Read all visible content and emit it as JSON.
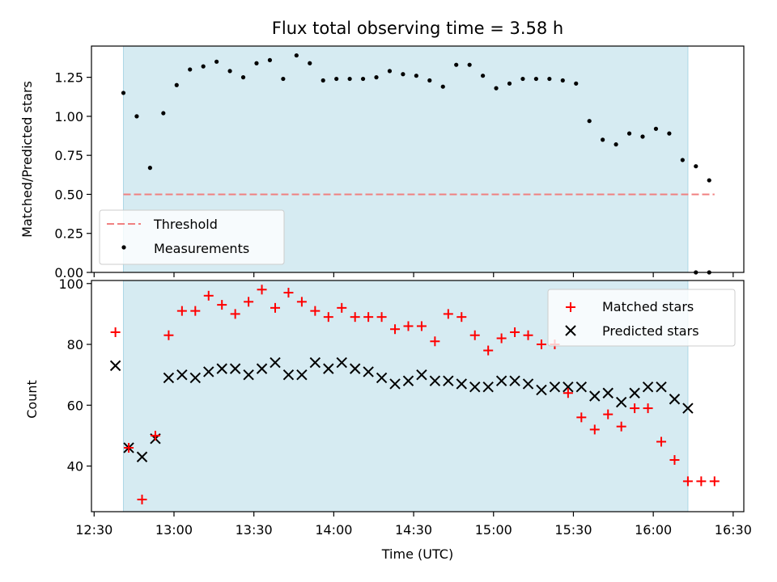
{
  "chart_data": [
    {
      "type": "scatter",
      "panel": "top",
      "title": "Flux total observing time = 3.58 h",
      "xlabel": "",
      "ylabel": "Matched/Predicted stars",
      "ylim": [
        0,
        1.45
      ],
      "yticks": [
        0,
        0.25,
        0.5,
        0.75,
        1.0,
        1.25
      ],
      "ytick_labels": [
        "0.00",
        "0.25",
        "0.50",
        "0.75",
        "1.00",
        "1.25"
      ],
      "shaded_interval_min": [
        11,
        223
      ],
      "threshold": {
        "name": "Threshold",
        "y": 0.5,
        "x_range_min": [
          11,
          233
        ],
        "color": "#f08080"
      },
      "series": [
        {
          "name": "Measurements",
          "color": "#000000",
          "x_min": [
            11,
            16,
            21,
            26,
            31,
            36,
            41,
            46,
            51,
            56,
            61,
            66,
            71,
            76,
            81,
            86,
            91,
            96,
            101,
            106,
            111,
            116,
            121,
            126,
            131,
            136,
            141,
            146,
            151,
            156,
            161,
            166,
            171,
            176,
            181,
            186,
            191,
            196,
            201,
            206,
            211,
            216,
            221,
            226,
            231
          ],
          "y": [
            1.15,
            1.0,
            0.67,
            1.02,
            1.2,
            1.3,
            1.32,
            1.35,
            1.29,
            1.25,
            1.34,
            1.36,
            1.24,
            1.39,
            1.34,
            1.23,
            1.24,
            1.24,
            1.24,
            1.25,
            1.29,
            1.27,
            1.26,
            1.23,
            1.19,
            1.33,
            1.33,
            1.26,
            1.18,
            1.21,
            1.24,
            1.24,
            1.24,
            1.23,
            1.21,
            0.97,
            0.85,
            0.82,
            0.89,
            0.87,
            0.92,
            0.89,
            0.72,
            0.68,
            0.59
          ]
        }
      ],
      "extra_points": {
        "x_min": [
          226,
          231
        ],
        "y": [
          0.0,
          0.0
        ]
      },
      "legend": {
        "placement": "lower-left",
        "entries": [
          "Threshold",
          "Measurements"
        ]
      }
    },
    {
      "type": "scatter",
      "panel": "bottom",
      "xlabel": "Time (UTC)",
      "ylabel": "Count",
      "ylim": [
        25,
        101
      ],
      "yticks": [
        40,
        60,
        80,
        100
      ],
      "ytick_labels": [
        "40",
        "60",
        "80",
        "100"
      ],
      "x_axis": {
        "range_min": [
          -1,
          244
        ],
        "tick_min": [
          0,
          30,
          60,
          90,
          120,
          150,
          180,
          210,
          240
        ],
        "tick_labels": [
          "12:30",
          "13:00",
          "13:30",
          "14:00",
          "14:30",
          "15:00",
          "15:30",
          "16:00",
          "16:30"
        ]
      },
      "series": [
        {
          "name": "Matched stars",
          "marker": "+",
          "color": "#ff0000",
          "x_min": [
            8,
            13,
            18,
            23,
            28,
            33,
            38,
            43,
            48,
            53,
            58,
            63,
            68,
            73,
            78,
            83,
            88,
            93,
            98,
            103,
            108,
            113,
            118,
            123,
            128,
            133,
            138,
            143,
            148,
            153,
            158,
            163,
            168,
            173,
            178,
            183,
            188,
            193,
            198,
            203,
            208,
            213,
            218,
            223,
            228,
            233
          ],
          "y": [
            84,
            46,
            29,
            50,
            83,
            91,
            91,
            96,
            93,
            90,
            94,
            98,
            92,
            97,
            94,
            91,
            89,
            92,
            89,
            89,
            89,
            85,
            86,
            86,
            81,
            90,
            89,
            83,
            78,
            82,
            84,
            83,
            80,
            80,
            64,
            56,
            52,
            57,
            53,
            59,
            59,
            48,
            42,
            35,
            35,
            35
          ]
        },
        {
          "name": "Predicted stars",
          "marker": "x",
          "color": "#000000",
          "x_min": [
            8,
            13,
            18,
            23,
            28,
            33,
            38,
            43,
            48,
            53,
            58,
            63,
            68,
            73,
            78,
            83,
            88,
            93,
            98,
            103,
            108,
            113,
            118,
            123,
            128,
            133,
            138,
            143,
            148,
            153,
            158,
            163,
            168,
            173,
            178,
            183,
            188,
            193,
            198,
            203,
            208,
            213,
            218,
            223
          ],
          "y": [
            73,
            46,
            43,
            49,
            69,
            70,
            69,
            71,
            72,
            72,
            70,
            72,
            74,
            70,
            70,
            74,
            72,
            74,
            72,
            71,
            69,
            67,
            68,
            70,
            68,
            68,
            67,
            66,
            66,
            68,
            68,
            67,
            65,
            66,
            66,
            66,
            63,
            64,
            61,
            64,
            66,
            66,
            62,
            59
          ]
        }
      ],
      "legend": {
        "placement": "upper-right",
        "entries": [
          "Matched stars",
          "Predicted stars"
        ]
      }
    }
  ]
}
